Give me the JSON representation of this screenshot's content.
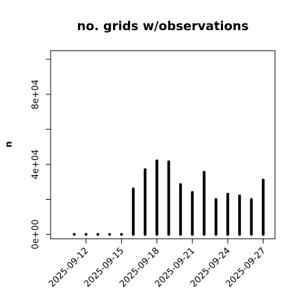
{
  "chart_data": {
    "type": "bar",
    "title": "no. grids w/observations",
    "ylabel": "n",
    "xlabel": "",
    "x": [
      "2025-09-11",
      "2025-09-12",
      "2025-09-13",
      "2025-09-14",
      "2025-09-15",
      "2025-09-16",
      "2025-09-17",
      "2025-09-18",
      "2025-09-19",
      "2025-09-20",
      "2025-09-21",
      "2025-09-22",
      "2025-09-23",
      "2025-09-24",
      "2025-09-25",
      "2025-09-26",
      "2025-09-27"
    ],
    "values": [
      0,
      0,
      0,
      0,
      0,
      26000,
      37000,
      42000,
      41500,
      28500,
      24000,
      35500,
      20000,
      23000,
      22000,
      20000,
      31000
    ],
    "xlim": [
      "2025-09-09",
      "2025-09-28"
    ],
    "ylim": [
      -2500,
      105000
    ],
    "x_tick_labels": [
      "2025-09-12",
      "2025-09-15",
      "2025-09-18",
      "2025-09-21",
      "2025-09-24",
      "2025-09-27"
    ],
    "highlight_tick": "2025-09-18",
    "y_ticks": [
      0,
      20000,
      40000,
      60000,
      80000,
      100000
    ],
    "y_tick_labels": [
      "0e+00",
      "4e+04",
      "8e+04"
    ],
    "y_tick_label_values": [
      0,
      40000,
      80000
    ],
    "grid": false,
    "colors": {
      "bar": "#000000",
      "highlight": "#228B22"
    }
  }
}
